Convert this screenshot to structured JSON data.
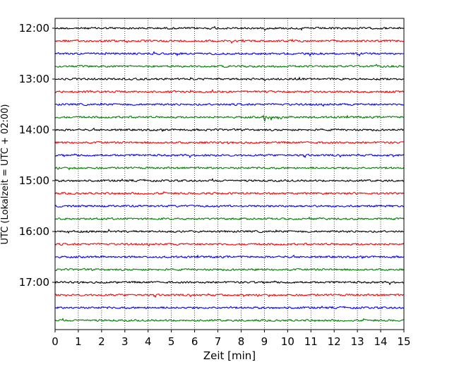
{
  "chart_data": {
    "type": "line",
    "title": "",
    "xlabel": "Zeit  [min]",
    "ylabel": "UTC (Lokalzeit = UTC + 02:00)",
    "xlim": [
      0,
      15
    ],
    "x_ticks": [
      "0",
      "1",
      "2",
      "3",
      "4",
      "5",
      "6",
      "7",
      "8",
      "9",
      "10",
      "11",
      "12",
      "13",
      "14",
      "15"
    ],
    "y_ticks": [
      "12:00",
      "13:00",
      "14:00",
      "15:00",
      "16:00",
      "17:00"
    ],
    "trace_interval_min": 15,
    "start_time": "12:00",
    "trace_colors": [
      "#000000",
      "#ff0000",
      "#0000ff",
      "#008000"
    ],
    "grid_x": true,
    "traces": [
      {
        "start": "12:00",
        "color": "#000000"
      },
      {
        "start": "12:15",
        "color": "#ff0000"
      },
      {
        "start": "12:30",
        "color": "#0000ff"
      },
      {
        "start": "12:45",
        "color": "#008000"
      },
      {
        "start": "13:00",
        "color": "#000000"
      },
      {
        "start": "13:15",
        "color": "#ff0000"
      },
      {
        "start": "13:30",
        "color": "#0000ff"
      },
      {
        "start": "13:45",
        "color": "#008000",
        "event_at_min": 8.95
      },
      {
        "start": "14:00",
        "color": "#000000"
      },
      {
        "start": "14:15",
        "color": "#ff0000"
      },
      {
        "start": "14:30",
        "color": "#0000ff"
      },
      {
        "start": "14:45",
        "color": "#008000"
      },
      {
        "start": "15:00",
        "color": "#000000"
      },
      {
        "start": "15:15",
        "color": "#ff0000"
      },
      {
        "start": "15:30",
        "color": "#0000ff"
      },
      {
        "start": "15:45",
        "color": "#008000"
      },
      {
        "start": "16:00",
        "color": "#000000"
      },
      {
        "start": "16:15",
        "color": "#ff0000"
      },
      {
        "start": "16:30",
        "color": "#0000ff"
      },
      {
        "start": "16:45",
        "color": "#008000"
      },
      {
        "start": "17:00",
        "color": "#000000"
      },
      {
        "start": "17:15",
        "color": "#ff0000"
      },
      {
        "start": "17:30",
        "color": "#0000ff"
      },
      {
        "start": "17:45",
        "color": "#008000"
      }
    ]
  }
}
